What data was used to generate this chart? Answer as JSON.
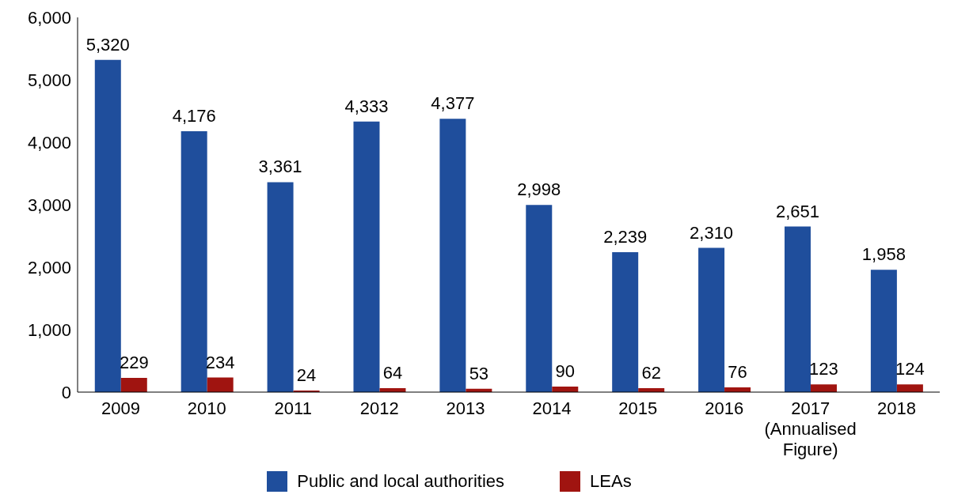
{
  "chart_data": {
    "type": "bar",
    "categories": [
      "2009",
      "2010",
      "2011",
      "2012",
      "2013",
      "2014",
      "2015",
      "2016",
      "2017 (Annualised Figure)",
      "2018"
    ],
    "series": [
      {
        "name": "Public and local authorities",
        "color": "#1f4e9c",
        "values": [
          5320,
          4176,
          3361,
          4333,
          4377,
          2998,
          2239,
          2310,
          2651,
          1958
        ],
        "value_labels": [
          "5,320",
          "4,176",
          "3,361",
          "4,333",
          "4,377",
          "2,998",
          "2,239",
          "2,310",
          "2,651",
          "1,958"
        ]
      },
      {
        "name": "LEAs",
        "color": "#a01410",
        "values": [
          229,
          234,
          24,
          64,
          53,
          90,
          62,
          76,
          123,
          124
        ],
        "value_labels": [
          "229",
          "234",
          "24",
          "64",
          "53",
          "90",
          "62",
          "76",
          "123",
          "124"
        ]
      }
    ],
    "ylim": [
      0,
      6000
    ],
    "yticks": [
      {
        "value": 0,
        "label": "0"
      },
      {
        "value": 1000,
        "label": "1,000"
      },
      {
        "value": 2000,
        "label": "2,000"
      },
      {
        "value": 3000,
        "label": "3,000"
      },
      {
        "value": 4000,
        "label": "4,000"
      },
      {
        "value": 5000,
        "label": "5,000"
      },
      {
        "value": 6000,
        "label": "6,000"
      }
    ],
    "grid": false,
    "legend": "bottom"
  }
}
